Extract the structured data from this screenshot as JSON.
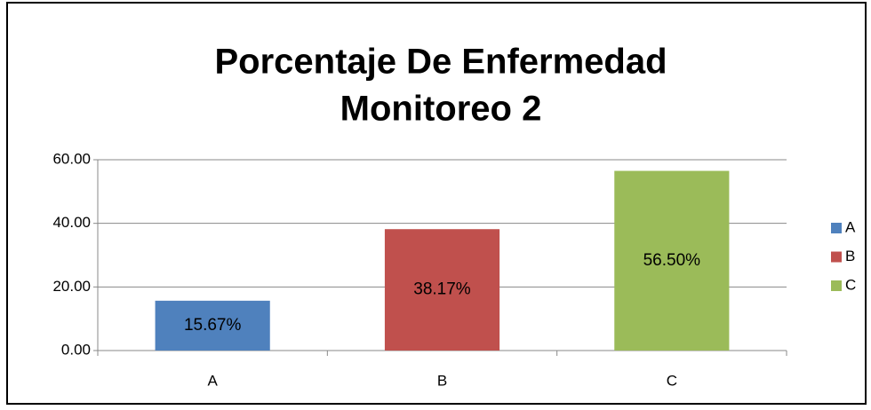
{
  "chart_data": {
    "type": "bar",
    "title": [
      "Porcentaje De Enfermedad",
      "Monitoreo 2"
    ],
    "categories": [
      "A",
      "B",
      "C"
    ],
    "values": [
      15.67,
      38.17,
      56.5
    ],
    "value_labels": [
      "15.67%",
      "38.17%",
      "56.50%"
    ],
    "colors": [
      "#4f81bd",
      "#c0504d",
      "#9bbb59"
    ],
    "ylim": [
      0,
      60
    ],
    "yticks": [
      {
        "value": 0,
        "label": "0.00"
      },
      {
        "value": 20,
        "label": "20.00"
      },
      {
        "value": 40,
        "label": "40.00"
      },
      {
        "value": 60,
        "label": "60.00"
      }
    ],
    "grid": true,
    "legend": "right"
  }
}
